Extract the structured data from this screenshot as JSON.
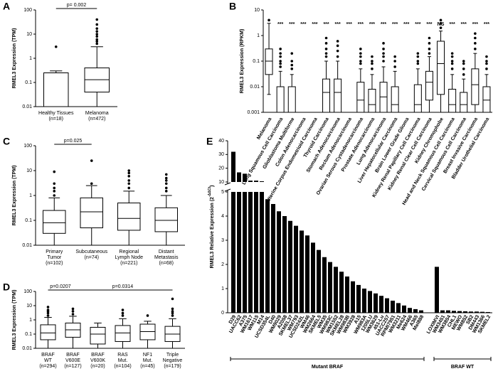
{
  "chart_data": [
    {
      "type": "box",
      "panel": "A",
      "ylabel": "RMEL3 Expression (TPM)",
      "log": true,
      "ylim": [
        0.01,
        100
      ],
      "yticks": [
        0.01,
        0.1,
        1,
        10,
        100
      ],
      "categories": [
        [
          "Healthy Tissues"
        ],
        [
          "Melanoma"
        ]
      ],
      "n_labels": [
        "(n=18)",
        "(n=472)"
      ],
      "boxes": [
        {
          "min": 0.01,
          "q1": 0.01,
          "median": 0.25,
          "q3": 0.25,
          "max": 0.3,
          "outliers": [
            3
          ]
        },
        {
          "min": 0.01,
          "q1": 0.04,
          "median": 0.13,
          "q3": 0.4,
          "max": 3,
          "outliers": [
            4,
            5,
            6,
            8,
            10,
            13,
            17,
            25,
            40
          ]
        }
      ],
      "annotations": [
        "p= 0.002"
      ]
    },
    {
      "type": "box",
      "panel": "B",
      "ylabel": "RMEL3 Expression (RPKM)",
      "log": true,
      "ylim": [
        0.001,
        10
      ],
      "yticks": [
        0.001,
        0.01,
        0.1,
        1,
        10
      ],
      "categories": [
        "Melanoma",
        "Lung Squamous Cell Carcinoma",
        "Glioblastoma Multiforme",
        "Colon Adenocarcinoma",
        "Uterine Corpus Endometrioid Carcinoma",
        "Thyroid Carcinoma",
        "Stomach Adenocarcinoma",
        "Rectum Adenocarcinoma",
        "Ovarian Serous Cystadenocarcinoma",
        "Prostate Adenocarcinoma",
        "Lung Adenocarcinoma",
        "Liver Hepatocellular Carcinoma",
        "Brain Lower Grade Glioma",
        "Kidney Renal Papillary Cell Carcinoma",
        "Kidney Renal Clear Cell Carcinoma",
        "Kidney Chromophobe",
        "Head and Neck Squamous Cell Carcinoma",
        "Cervical Squamous Cell Carcinoma",
        "Breast Invasive Carcinoma",
        "Bladder Urothelial Carcinoma"
      ],
      "significance": [
        null,
        "***",
        "***",
        "***",
        "***",
        "***",
        "***",
        "***",
        "***",
        "***",
        "***",
        "***",
        "***",
        "***",
        "***",
        "NS",
        "***",
        "***",
        "***",
        "***"
      ],
      "boxes": [
        {
          "min": 0.005,
          "q1": 0.03,
          "median": 0.1,
          "q3": 0.3,
          "max": 3,
          "outliers": [
            4
          ]
        },
        {
          "min": 0.001,
          "q1": 0.001,
          "median": 0.001,
          "q3": 0.01,
          "max": 0.04,
          "outliers": [
            0.06,
            0.08,
            0.1,
            0.15,
            0.2,
            0.3
          ]
        },
        {
          "min": 0.001,
          "q1": 0.001,
          "median": 0.001,
          "q3": 0.01,
          "max": 0.03,
          "outliers": [
            0.05,
            0.07,
            0.1,
            0.2
          ]
        },
        null,
        null,
        {
          "min": 0.001,
          "q1": 0.001,
          "median": 0.006,
          "q3": 0.02,
          "max": 0.1,
          "outliers": [
            0.15,
            0.2,
            0.3,
            0.5,
            0.8
          ]
        },
        {
          "min": 0.001,
          "q1": 0.001,
          "median": 0.006,
          "q3": 0.02,
          "max": 0.1,
          "outliers": [
            0.15,
            0.25,
            0.4,
            0.6
          ]
        },
        null,
        {
          "min": 0.001,
          "q1": 0.001,
          "median": 0.003,
          "q3": 0.015,
          "max": 0.05,
          "outliers": [
            0.08,
            0.1,
            0.15,
            0.2,
            0.3
          ]
        },
        {
          "min": 0.001,
          "q1": 0.001,
          "median": 0.002,
          "q3": 0.008,
          "max": 0.03,
          "outliers": [
            0.05,
            0.08,
            0.1,
            0.15
          ]
        },
        {
          "min": 0.001,
          "q1": 0.001,
          "median": 0.004,
          "q3": 0.015,
          "max": 0.06,
          "outliers": [
            0.1,
            0.15,
            0.2,
            0.3,
            0.5
          ]
        },
        {
          "min": 0.001,
          "q1": 0.001,
          "median": 0.002,
          "q3": 0.01,
          "max": 0.04,
          "outliers": [
            0.06,
            0.1,
            0.15
          ]
        },
        null,
        {
          "min": 0.001,
          "q1": 0.001,
          "median": 0.002,
          "q3": 0.012,
          "max": 0.05,
          "outliers": [
            0.08,
            0.1,
            0.15,
            0.2
          ]
        },
        {
          "min": 0.001,
          "q1": 0.003,
          "median": 0.015,
          "q3": 0.04,
          "max": 0.15,
          "outliers": [
            0.2,
            0.3,
            0.5,
            0.8
          ]
        },
        {
          "min": 0.001,
          "q1": 0.005,
          "median": 0.08,
          "q3": 0.6,
          "max": 1.5,
          "outliers": [
            2,
            3,
            4
          ]
        },
        {
          "min": 0.001,
          "q1": 0.001,
          "median": 0.002,
          "q3": 0.008,
          "max": 0.03,
          "outliers": [
            0.05,
            0.08,
            0.1,
            0.15,
            0.2
          ]
        },
        {
          "min": 0.001,
          "q1": 0.001,
          "median": 0.002,
          "q3": 0.006,
          "max": 0.02,
          "outliers": [
            0.03,
            0.05,
            0.08,
            0.1
          ]
        },
        {
          "min": 0.001,
          "q1": 0.002,
          "median": 0.012,
          "q3": 0.05,
          "max": 0.2,
          "outliers": [
            0.3,
            0.5,
            0.8,
            1.2
          ]
        },
        {
          "min": 0.001,
          "q1": 0.001,
          "median": 0.003,
          "q3": 0.01,
          "max": 0.03,
          "outliers": [
            0.05,
            0.08,
            0.1,
            0.15
          ]
        }
      ]
    },
    {
      "type": "box",
      "panel": "C",
      "ylabel": "RMEL3 Expression (TPM)",
      "log": true,
      "ylim": [
        0.01,
        100
      ],
      "yticks": [
        0.01,
        0.1,
        1,
        10,
        100
      ],
      "categories": [
        [
          "Primary",
          "Tumor"
        ],
        [
          "Subcutaneous"
        ],
        [
          "Regional",
          "Lymph Node"
        ],
        [
          "Distant",
          "Metastasis"
        ]
      ],
      "n_labels": [
        "(n=102)",
        "(n=74)",
        "(n=221)",
        "(n=68)"
      ],
      "boxes": [
        {
          "min": 0.01,
          "q1": 0.03,
          "median": 0.08,
          "q3": 0.25,
          "max": 0.8,
          "outliers": [
            1,
            1.5,
            2,
            3,
            9
          ]
        },
        {
          "min": 0.01,
          "q1": 0.05,
          "median": 0.22,
          "q3": 0.8,
          "max": 2.5,
          "outliers": [
            3,
            25
          ]
        },
        {
          "min": 0.01,
          "q1": 0.04,
          "median": 0.12,
          "q3": 0.5,
          "max": 1.5,
          "outliers": [
            2,
            3,
            4,
            6,
            8,
            10
          ]
        },
        {
          "min": 0.01,
          "q1": 0.035,
          "median": 0.1,
          "q3": 0.32,
          "max": 1,
          "outliers": [
            1.5,
            2,
            3,
            4,
            5,
            7
          ]
        }
      ],
      "annotations": [
        "p=0.025"
      ]
    },
    {
      "type": "box",
      "panel": "D",
      "ylabel": "RMEL3 Expression (TPM)",
      "log": true,
      "ylim": [
        0.01,
        100
      ],
      "yticks": [
        0.01,
        0.1,
        1,
        10,
        100
      ],
      "categories": [
        [
          "BRAF",
          "WT"
        ],
        [
          "BRAF",
          "V600E"
        ],
        [
          "BRAF",
          "V600K"
        ],
        [
          "RAS",
          "Mut."
        ],
        [
          "NF1",
          "Mut."
        ],
        [
          "Triple",
          "Negative"
        ]
      ],
      "n_labels": [
        "(n=294)",
        "(n=127)",
        "(n=20)",
        "(n=104)",
        "(n=45)",
        "(n=179)"
      ],
      "boxes": [
        {
          "min": 0.01,
          "q1": 0.04,
          "median": 0.12,
          "q3": 0.45,
          "max": 1.5,
          "outliers": [
            2,
            3,
            4,
            5,
            8
          ]
        },
        {
          "min": 0.01,
          "q1": 0.06,
          "median": 0.2,
          "q3": 0.6,
          "max": 1.8,
          "outliers": [
            2.5,
            4,
            6
          ]
        },
        {
          "min": 0.01,
          "q1": 0.02,
          "median": 0.1,
          "q3": 0.3,
          "max": 0.6,
          "outliers": []
        },
        {
          "min": 0.01,
          "q1": 0.03,
          "median": 0.12,
          "q3": 0.4,
          "max": 1.2,
          "outliers": [
            2,
            3,
            5
          ]
        },
        {
          "min": 0.01,
          "q1": 0.04,
          "median": 0.15,
          "q3": 0.5,
          "max": 0.8,
          "outliers": [
            2
          ]
        },
        {
          "min": 0.01,
          "q1": 0.03,
          "median": 0.1,
          "q3": 0.35,
          "max": 1.2,
          "outliers": [
            2,
            3,
            4,
            6,
            30
          ]
        }
      ],
      "annotations": [
        "p=0.0207",
        "p=0.0314"
      ]
    },
    {
      "type": "bar",
      "panel": "E",
      "ylabel": "RMEL3 Relative Expression (2",
      "ylabel_sup": "-ΔΔCt",
      "ylabel_end": ")",
      "color": "#000000",
      "ylim": [
        0,
        40
      ],
      "axis_break": [
        5,
        10
      ],
      "yticks": [
        0,
        1,
        2,
        3,
        4,
        5,
        10,
        20,
        30,
        40
      ],
      "groups": [
        {
          "name": "Mutant BRAF",
          "categories": [
            "D29",
            "UACC62",
            "A375",
            "WM1617",
            "WM115",
            "M14",
            "UCSD354L",
            "D40",
            "WM9029",
            "A2058",
            "SKMEL37",
            "WM793",
            "UCSD242L",
            "WM46",
            "WM2664",
            "SKMEL5",
            "WM35",
            "WM983C",
            "WM1552",
            "SKMEL28",
            "WM983B",
            "WM3928",
            "A15",
            "WM983A",
            "1205LU",
            "WM3629",
            "451-Lu",
            "UACC257",
            "RPMI7951",
            "WM3211",
            "Me624",
            "WM466",
            "A365",
            "Mel888"
          ],
          "values": [
            32,
            17,
            16,
            11,
            11,
            10.5,
            4.7,
            4.5,
            4.2,
            4.0,
            3.8,
            3.6,
            3.4,
            3.2,
            2.9,
            2.6,
            2.3,
            2.1,
            1.9,
            1.7,
            1.5,
            1.3,
            1.15,
            1.0,
            0.9,
            0.8,
            0.7,
            0.6,
            0.5,
            0.4,
            0.3,
            0.2,
            0.15,
            0.1
          ]
        },
        {
          "name": "BRAF WT",
          "categories": [
            "LOXIMVI",
            "WM3451",
            "WM3854",
            "CHL1",
            "MEWO",
            "WM852",
            "SB2",
            "DM443",
            "WM1366",
            "SKMEL2"
          ],
          "values": [
            1.9,
            0.1,
            0.1,
            0.08,
            0.07,
            0.06,
            0.05,
            0.05,
            0.04,
            0.03
          ]
        }
      ]
    }
  ]
}
